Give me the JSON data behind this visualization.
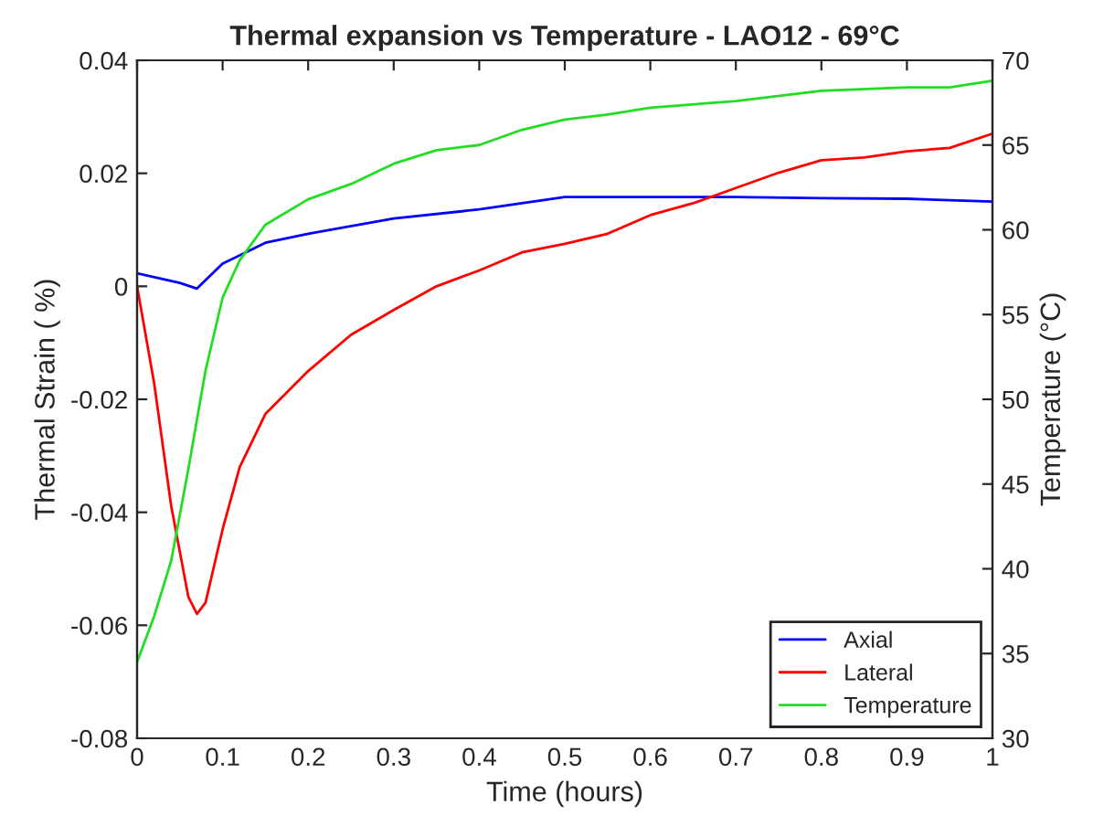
{
  "chart_data": {
    "type": "line",
    "title": "Thermal expansion vs Temperature - LAO12 - 69°C",
    "xlabel": "Time (hours)",
    "ylabel": "Thermal Strain ( %)",
    "y2label": "Temperature (°C)",
    "xlim": [
      0,
      1
    ],
    "xticks": [
      0,
      0.1,
      0.2,
      0.3,
      0.4,
      0.5,
      0.6,
      0.7,
      0.8,
      0.9,
      1
    ],
    "ylim": [
      -0.08,
      0.04
    ],
    "yticks": [
      -0.08,
      -0.06,
      -0.04,
      -0.02,
      0,
      0.02,
      0.04
    ],
    "y2lim": [
      30,
      70
    ],
    "y2ticks": [
      30,
      35,
      40,
      45,
      50,
      55,
      60,
      65,
      70
    ],
    "grid": false,
    "legend": "bottom right",
    "line_style": "solid",
    "marker": "none",
    "series": [
      {
        "name": "Axial",
        "color": "#0000ff",
        "x": [
          0,
          0.05,
          0.07,
          0.1,
          0.15,
          0.2,
          0.3,
          0.4,
          0.5,
          0.6,
          0.7,
          0.8,
          0.9,
          1
        ],
        "values": [
          0.0023,
          0.0006,
          -0.0004,
          0.004,
          0.0077,
          0.0093,
          0.012,
          0.0136,
          0.0158,
          0.0158,
          0.0158,
          0.0156,
          0.0155,
          0.015
        ]
      },
      {
        "name": "Lateral",
        "color": "#ff0000",
        "x": [
          0,
          0.02,
          0.04,
          0.06,
          0.07,
          0.08,
          0.1,
          0.12,
          0.15,
          0.2,
          0.25,
          0.3,
          0.35,
          0.4,
          0.45,
          0.5,
          0.55,
          0.6,
          0.65,
          0.7,
          0.75,
          0.8,
          0.85,
          0.9,
          0.95,
          1
        ],
        "values": [
          0,
          -0.0172,
          -0.039,
          -0.055,
          -0.058,
          -0.056,
          -0.043,
          -0.032,
          -0.0226,
          -0.015,
          -0.0086,
          -0.0042,
          0,
          0.0028,
          0.006,
          0.0075,
          0.0093,
          0.0126,
          0.0147,
          0.0174,
          0.0201,
          0.0223,
          0.0228,
          0.0239,
          0.0245,
          0.027
        ]
      },
      {
        "name": "Temperature",
        "color": "#22dd22",
        "axis": "y2",
        "x": [
          0,
          0.02,
          0.04,
          0.06,
          0.08,
          0.1,
          0.12,
          0.15,
          0.2,
          0.25,
          0.3,
          0.35,
          0.4,
          0.45,
          0.5,
          0.55,
          0.6,
          0.7,
          0.8,
          0.9,
          0.95,
          1
        ],
        "values": [
          34.5,
          37.2,
          40.5,
          45.9,
          51.7,
          56,
          58.2,
          60.3,
          61.8,
          62.7,
          63.9,
          64.7,
          65,
          65.9,
          66.5,
          66.8,
          67.2,
          67.6,
          68.2,
          68.4,
          68.4,
          68.8
        ]
      }
    ]
  }
}
